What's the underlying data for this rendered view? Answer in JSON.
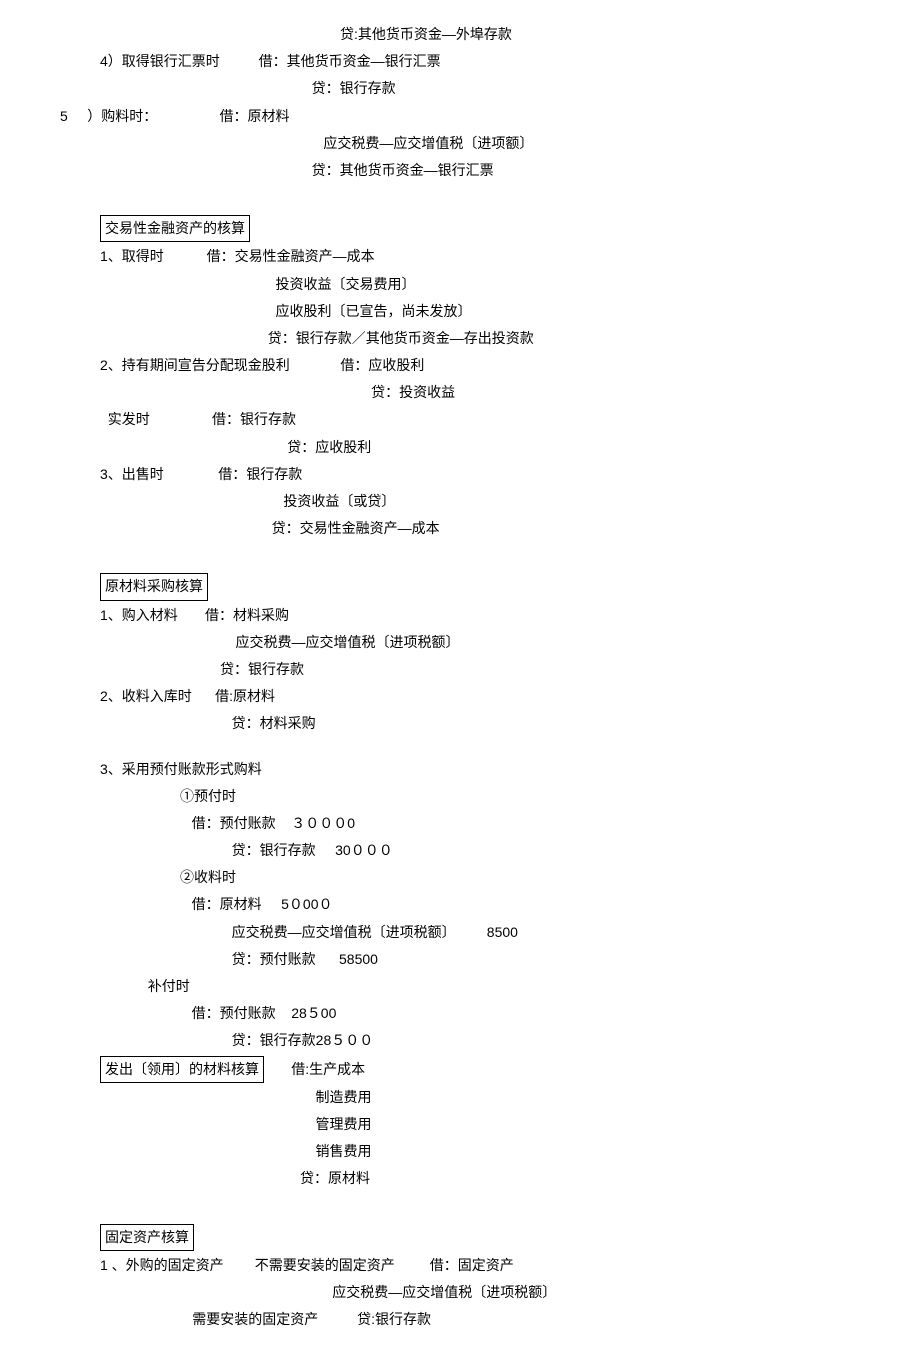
{
  "lines": [
    {
      "cls": "indent-7",
      "text": "贷:其他货币资金—外埠存款"
    },
    {
      "cls": "indent-1",
      "text": "4）取得银行汇票时          借：其他货币资金—银行汇票"
    },
    {
      "cls": "indent-6",
      "text": "   贷：银行存款"
    },
    {
      "cls": "",
      "text": "5     ）购料时：                借：原材料"
    },
    {
      "cls": "indent-6",
      "text": "      应交税费—应交增值税〔进项额〕"
    },
    {
      "cls": "indent-6",
      "text": "   贷：其他货币资金—银行汇票"
    },
    {
      "cls": "spacer-lg",
      "text": ""
    },
    {
      "cls": "indent-1",
      "box": "交易性金融资产的核算"
    },
    {
      "cls": "indent-1",
      "text": "1、取得时           借：交易性金融资产—成本"
    },
    {
      "cls": "indent-5",
      "text": "    投资收益〔交易费用〕"
    },
    {
      "cls": "indent-5",
      "text": "    应收股利〔已宣告，尚未发放〕"
    },
    {
      "cls": "indent-5",
      "text": "  贷：银行存款／其他货币资金—存出投资款"
    },
    {
      "cls": "indent-1",
      "text": "2、持有期间宣告分配现金股利             借：应收股利"
    },
    {
      "cls": "indent-7",
      "text": "        贷：投资收益"
    },
    {
      "cls": "indent-1",
      "text": "  实发时                借：银行存款"
    },
    {
      "cls": "indent-5",
      "text": "       贷：应收股利"
    },
    {
      "cls": "indent-1",
      "text": "3、出售时              借：银行存款"
    },
    {
      "cls": "indent-5",
      "text": "      投资收益〔或贷〕"
    },
    {
      "cls": "indent-5",
      "text": "   贷：交易性金融资产—成本"
    },
    {
      "cls": "spacer-lg",
      "text": ""
    },
    {
      "cls": "indent-1",
      "box": "原材料采购核算"
    },
    {
      "cls": "indent-1",
      "text": "1、购入材料       借：材料采购"
    },
    {
      "cls": "indent-4",
      "text": "    应交税费—应交增值税〔进项税额〕"
    },
    {
      "cls": "indent-4",
      "text": "贷：银行存款"
    },
    {
      "cls": "indent-1",
      "text": "2、收料入库时      借:原材料"
    },
    {
      "cls": "indent-4",
      "text": "   贷：材料采购"
    },
    {
      "cls": "spacer",
      "text": ""
    },
    {
      "cls": "indent-1",
      "text": "3、采用预付账款形式购料"
    },
    {
      "cls": "indent-3",
      "text": "①预付时"
    },
    {
      "cls": "indent-3",
      "text": "   借：预付账款    ３０００0"
    },
    {
      "cls": "indent-4",
      "text": "   贷：银行存款     30０００"
    },
    {
      "cls": "indent-3",
      "text": "②收料时"
    },
    {
      "cls": "indent-3",
      "text": "   借：原材料     5０00０"
    },
    {
      "cls": "indent-4",
      "text": "   应交税费—应交增值税〔进项税额〕        8500"
    },
    {
      "cls": "indent-4",
      "text": "   贷：预付账款      58500"
    },
    {
      "cls": "indent-2",
      "text": "  补付时"
    },
    {
      "cls": "indent-3",
      "text": "   借：预付账款    28５00"
    },
    {
      "cls": "indent-4",
      "text": "   贷：银行存款28５００"
    },
    {
      "cls": "indent-1",
      "box": "发出〔领用〕的材料核算",
      "after": "       借:生产成本"
    },
    {
      "cls": "indent-6",
      "text": "    制造费用"
    },
    {
      "cls": "indent-6",
      "text": "    管理费用"
    },
    {
      "cls": "indent-6",
      "text": "    销售费用"
    },
    {
      "cls": "indent-6",
      "text": "贷：原材料"
    },
    {
      "cls": "spacer-lg",
      "text": ""
    },
    {
      "cls": "indent-1",
      "box": "固定资产核算"
    },
    {
      "cls": "indent-1",
      "text": "1 、外购的固定资产        不需要安装的固定资产         借：固定资产"
    },
    {
      "cls": "",
      "text": "                                                                      应交税费—应交增值税〔进项税额〕"
    },
    {
      "cls": "",
      "text": "                                  需要安装的固定资产          贷:银行存款"
    }
  ]
}
